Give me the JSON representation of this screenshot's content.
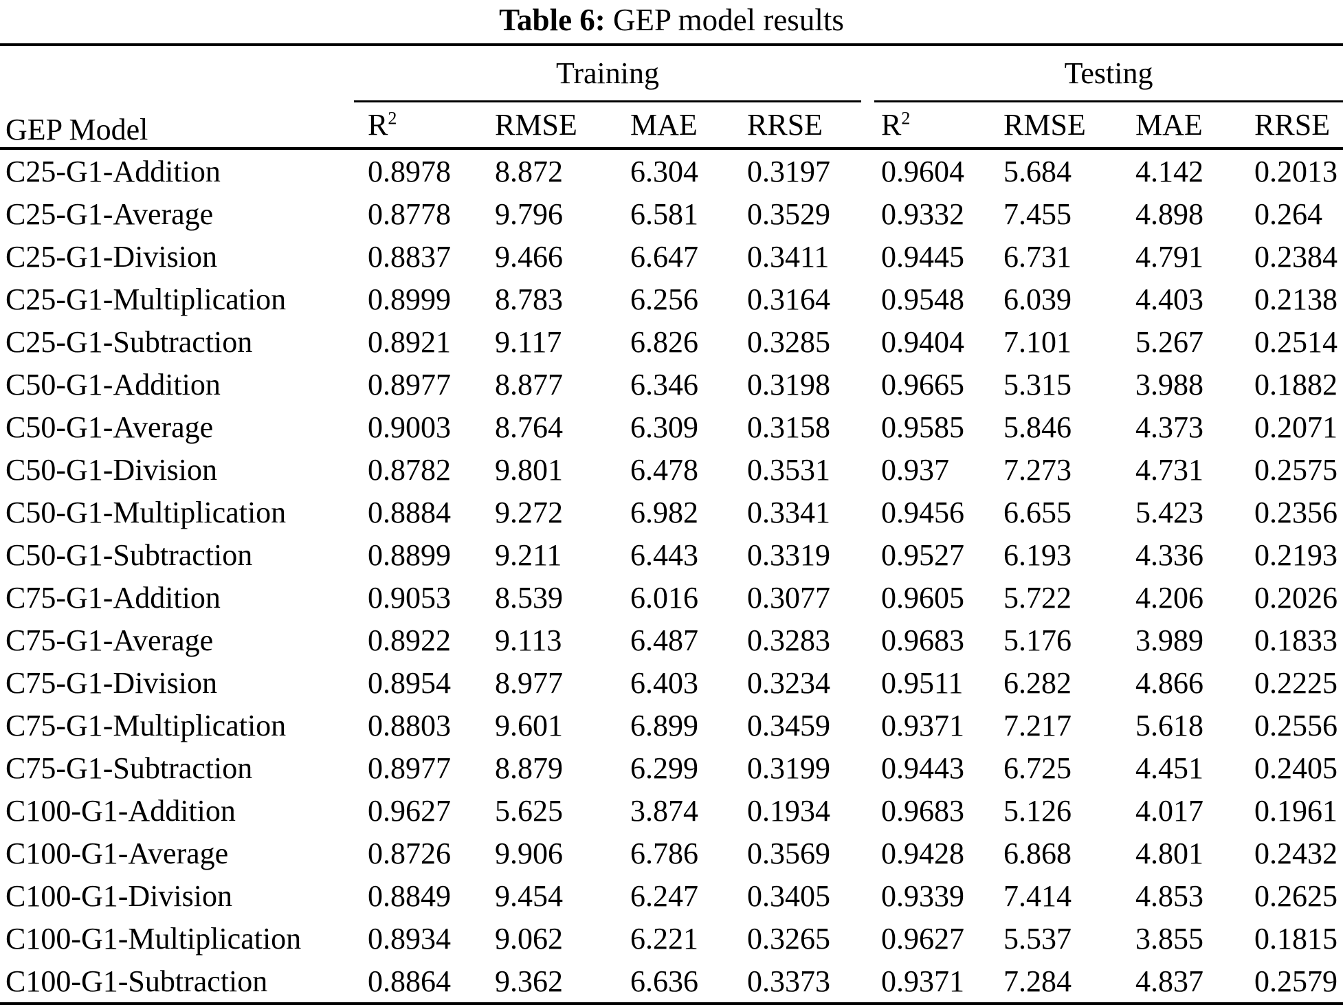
{
  "title": {
    "label": "Table 6:",
    "text": "GEP model results"
  },
  "table": {
    "col1_header": "GEP Model",
    "groups": [
      {
        "label": "Training"
      },
      {
        "label": "Testing"
      }
    ],
    "metric_headers": [
      {
        "base": "R",
        "sup": "2"
      },
      {
        "base": "RMSE"
      },
      {
        "base": "MAE"
      },
      {
        "base": "RRSE"
      },
      {
        "base": "R",
        "sup": "2"
      },
      {
        "base": "RMSE"
      },
      {
        "base": "MAE"
      },
      {
        "base": "RRSE"
      }
    ],
    "rows": [
      {
        "model": "C25-G1-Addition",
        "values": [
          "0.8978",
          "8.872",
          "6.304",
          "0.3197",
          "0.9604",
          "5.684",
          "4.142",
          "0.2013"
        ]
      },
      {
        "model": "C25-G1-Average",
        "values": [
          "0.8778",
          "9.796",
          "6.581",
          "0.3529",
          "0.9332",
          "7.455",
          "4.898",
          "0.264"
        ]
      },
      {
        "model": "C25-G1-Division",
        "values": [
          "0.8837",
          "9.466",
          "6.647",
          "0.3411",
          "0.9445",
          "6.731",
          "4.791",
          "0.2384"
        ]
      },
      {
        "model": "C25-G1-Multiplication",
        "values": [
          "0.8999",
          "8.783",
          "6.256",
          "0.3164",
          "0.9548",
          "6.039",
          "4.403",
          "0.2138"
        ]
      },
      {
        "model": "C25-G1-Subtraction",
        "values": [
          "0.8921",
          "9.117",
          "6.826",
          "0.3285",
          "0.9404",
          "7.101",
          "5.267",
          "0.2514"
        ]
      },
      {
        "model": "C50-G1-Addition",
        "values": [
          "0.8977",
          "8.877",
          "6.346",
          "0.3198",
          "0.9665",
          "5.315",
          "3.988",
          "0.1882"
        ]
      },
      {
        "model": "C50-G1-Average",
        "values": [
          "0.9003",
          "8.764",
          "6.309",
          "0.3158",
          "0.9585",
          "5.846",
          "4.373",
          "0.2071"
        ]
      },
      {
        "model": "C50-G1-Division",
        "values": [
          "0.8782",
          "9.801",
          "6.478",
          "0.3531",
          "0.937",
          "7.273",
          "4.731",
          "0.2575"
        ]
      },
      {
        "model": "C50-G1-Multiplication",
        "values": [
          "0.8884",
          "9.272",
          "6.982",
          "0.3341",
          "0.9456",
          "6.655",
          "5.423",
          "0.2356"
        ]
      },
      {
        "model": "C50-G1-Subtraction",
        "values": [
          "0.8899",
          "9.211",
          "6.443",
          "0.3319",
          "0.9527",
          "6.193",
          "4.336",
          "0.2193"
        ]
      },
      {
        "model": "C75-G1-Addition",
        "values": [
          "0.9053",
          "8.539",
          "6.016",
          "0.3077",
          "0.9605",
          "5.722",
          "4.206",
          "0.2026"
        ]
      },
      {
        "model": "C75-G1-Average",
        "values": [
          "0.8922",
          "9.113",
          "6.487",
          "0.3283",
          "0.9683",
          "5.176",
          "3.989",
          "0.1833"
        ]
      },
      {
        "model": "C75-G1-Division",
        "values": [
          "0.8954",
          "8.977",
          "6.403",
          "0.3234",
          "0.9511",
          "6.282",
          "4.866",
          "0.2225"
        ]
      },
      {
        "model": "C75-G1-Multiplication",
        "values": [
          "0.8803",
          "9.601",
          "6.899",
          "0.3459",
          "0.9371",
          "7.217",
          "5.618",
          "0.2556"
        ]
      },
      {
        "model": "C75-G1-Subtraction",
        "values": [
          "0.8977",
          "8.879",
          "6.299",
          "0.3199",
          "0.9443",
          "6.725",
          "4.451",
          "0.2405"
        ]
      },
      {
        "model": "C100-G1-Addition",
        "values": [
          "0.9627",
          "5.625",
          "3.874",
          "0.1934",
          "0.9683",
          "5.126",
          "4.017",
          "0.1961"
        ]
      },
      {
        "model": "C100-G1-Average",
        "values": [
          "0.8726",
          "9.906",
          "6.786",
          "0.3569",
          "0.9428",
          "6.868",
          "4.801",
          "0.2432"
        ]
      },
      {
        "model": "C100-G1-Division",
        "values": [
          "0.8849",
          "9.454",
          "6.247",
          "0.3405",
          "0.9339",
          "7.414",
          "4.853",
          "0.2625"
        ]
      },
      {
        "model": "C100-G1-Multiplication",
        "values": [
          "0.8934",
          "9.062",
          "6.221",
          "0.3265",
          "0.9627",
          "5.537",
          "3.855",
          "0.1815"
        ]
      },
      {
        "model": "C100-G1-Subtraction",
        "values": [
          "0.8864",
          "9.362",
          "6.636",
          "0.3373",
          "0.9371",
          "7.284",
          "4.837",
          "0.2579"
        ]
      }
    ]
  }
}
